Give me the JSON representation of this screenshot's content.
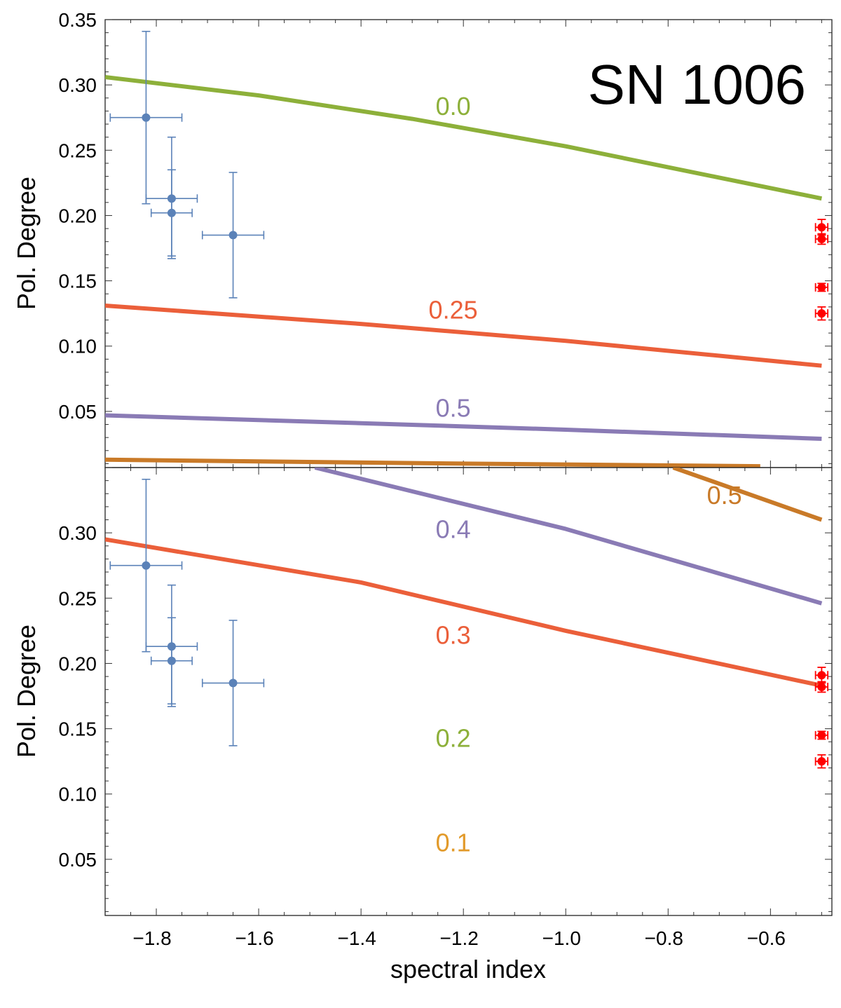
{
  "chart_data": [
    {
      "type": "line",
      "panel": "top",
      "title": "SN 1006",
      "xlabel": "spectral index",
      "ylabel": "Pol. Degree",
      "xlim": [
        -1.9,
        -0.48
      ],
      "ylim": [
        0.007,
        0.35
      ],
      "yticks": [
        "0.05",
        "0.10",
        "0.15",
        "0.20",
        "0.25",
        "0.30",
        "0.35"
      ],
      "series": [
        {
          "name": "0.0",
          "color": "#8DB03A",
          "x": [
            -1.9,
            -1.6,
            -1.3,
            -1.0,
            -0.7,
            -0.5
          ],
          "y": [
            0.306,
            0.292,
            0.274,
            0.253,
            0.229,
            0.213
          ],
          "label_pos": [
            -1.22,
            0.277
          ]
        },
        {
          "name": "0.25",
          "color": "#EB5F3A",
          "x": [
            -1.9,
            -1.4,
            -1.0,
            -0.5
          ],
          "y": [
            0.131,
            0.117,
            0.104,
            0.085
          ],
          "label_pos": [
            -1.22,
            0.121
          ]
        },
        {
          "name": "0.5",
          "color": "#8A7BB5",
          "x": [
            -1.9,
            -1.4,
            -1.0,
            -0.5
          ],
          "y": [
            0.047,
            0.041,
            0.036,
            0.029
          ],
          "label_pos": [
            -1.22,
            0.046
          ]
        },
        {
          "name": "",
          "color": "#C97A28",
          "x": [
            -1.9,
            -1.2,
            -0.62
          ],
          "y": [
            0.013,
            0.01,
            0.008
          ],
          "label_pos": null
        }
      ]
    },
    {
      "type": "line",
      "panel": "bottom",
      "xlabel": "spectral index",
      "ylabel": "Pol. Degree",
      "xlim": [
        -1.9,
        -0.48
      ],
      "ylim": [
        0.007,
        0.35
      ],
      "xticks": [
        "-1.8",
        "-1.6",
        "-1.4",
        "-1.2",
        "-1.0",
        "-0.8",
        "-0.6"
      ],
      "yticks": [
        "0.05",
        "0.10",
        "0.15",
        "0.20",
        "0.25",
        "0.30"
      ],
      "series": [
        {
          "name": "0.5",
          "color": "#C97A28",
          "x": [
            -0.79,
            -0.5
          ],
          "y": [
            0.35,
            0.31
          ],
          "label_pos": [
            -0.69,
            0.322
          ]
        },
        {
          "name": "0.4",
          "color": "#8A7BB5",
          "x": [
            -1.49,
            -1.0,
            -0.5
          ],
          "y": [
            0.35,
            0.303,
            0.246
          ],
          "label_pos": [
            -1.22,
            0.296
          ]
        },
        {
          "name": "0.3",
          "color": "#EB5F3A",
          "x": [
            -1.9,
            -1.4,
            -1.0,
            -0.5
          ],
          "y": [
            0.295,
            0.262,
            0.225,
            0.183
          ],
          "label_pos": [
            -1.22,
            0.215
          ]
        },
        {
          "name": "0.2",
          "color": "#8DB03A",
          "x": [],
          "y": [],
          "label_pos": [
            -1.22,
            0.136
          ]
        },
        {
          "name": "0.1",
          "color": "#E29A2A",
          "x": [],
          "y": [],
          "label_pos": [
            -1.22,
            0.056
          ]
        }
      ]
    }
  ],
  "observations": {
    "blue": {
      "color": "#5B82B8",
      "points": [
        {
          "x": -1.82,
          "y": 0.275,
          "xerr": [
            0.07,
            0.07
          ],
          "yerr": [
            0.066,
            0.066
          ]
        },
        {
          "x": -1.77,
          "y": 0.213,
          "xerr": [
            0.05,
            0.05
          ],
          "yerr": [
            0.044,
            0.047
          ]
        },
        {
          "x": -1.77,
          "y": 0.202,
          "xerr": [
            0.04,
            0.04
          ],
          "yerr": [
            0.035,
            0.033
          ]
        },
        {
          "x": -1.65,
          "y": 0.185,
          "xerr": [
            0.06,
            0.06
          ],
          "yerr": [
            0.048,
            0.048
          ]
        }
      ]
    },
    "red": {
      "color": "#FF0000",
      "points": [
        {
          "x": -0.5,
          "y": 0.191,
          "xerr": [
            0.012,
            0.012
          ],
          "yerr": [
            0.006,
            0.006
          ]
        },
        {
          "x": -0.5,
          "y": 0.182,
          "xerr": [
            0.012,
            0.012
          ],
          "yerr": [
            0.004,
            0.004
          ]
        },
        {
          "x": -0.5,
          "y": 0.145,
          "xerr": [
            0.012,
            0.012
          ],
          "yerr": [
            0.003,
            0.003
          ]
        },
        {
          "x": -0.5,
          "y": 0.125,
          "xerr": [
            0.012,
            0.012
          ],
          "yerr": [
            0.005,
            0.005
          ]
        }
      ]
    }
  }
}
